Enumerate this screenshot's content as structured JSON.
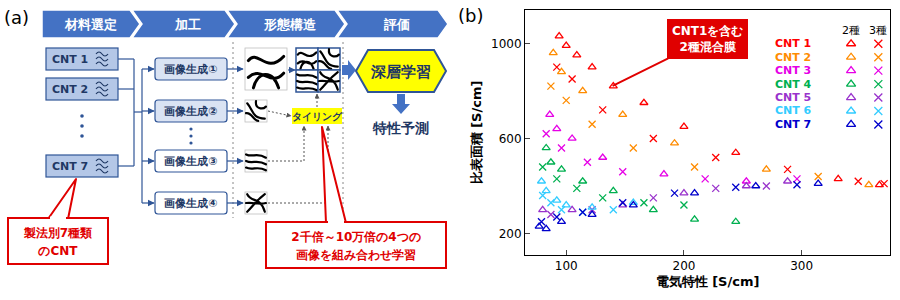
{
  "panel_a": {
    "label": "(a)",
    "stages": [
      "材料選定",
      "加工",
      "形態構造",
      "評価"
    ],
    "materials": [
      "CNT 1",
      "CNT 2",
      "CNT 7"
    ],
    "materials_note": [
      "製法別7種類",
      "のCNT"
    ],
    "processes": [
      "画像生成①",
      "画像生成②",
      "画像生成③",
      "画像生成④"
    ],
    "tiling": "タイリング",
    "deep_learning": "深層学習",
    "prediction": "特性予測",
    "tiling_note": [
      "2千倍～10万倍の4つの",
      "画像を組み合わせ学習"
    ]
  },
  "chart_data": {
    "type": "scatter",
    "label": "(b)",
    "x_label": "電気特性 [S/cm]",
    "y_label": "比表面積 [S/cm]",
    "xlim": [
      65,
      375
    ],
    "ylim": [
      110,
      1140
    ],
    "xticks": [
      100,
      200,
      300
    ],
    "yticks": [
      200,
      600,
      1000
    ],
    "grid": false,
    "legend": "top-right",
    "annotations": [
      {
        "text": "CNT1を含む\n2種混合膜"
      }
    ],
    "series": [
      {
        "name": "CNT 1",
        "color": "#ff0000",
        "mixtures": [
          {
            "name": "2種",
            "marker": "triangle-open",
            "x": [
              94,
              100,
              109,
              122,
              140,
              166,
              200,
              244,
              331,
              366
            ],
            "y": [
              1030,
              990,
              950,
              900,
              820,
              750,
              650,
              540,
              430,
              405
            ]
          },
          {
            "name": "3種",
            "marker": "x",
            "x": [
              92,
              105,
              131,
              174,
              227,
              288,
              348,
              370
            ],
            "y": [
              900,
              850,
              720,
              600,
              520,
              470,
              420,
              410
            ]
          }
        ]
      },
      {
        "name": "CNT 2",
        "color": "#ff8c00",
        "mixtures": [
          {
            "name": "2種",
            "marker": "triangle-open",
            "x": [
              89,
              96,
              114,
              148,
              192,
              270,
              357
            ],
            "y": [
              960,
              880,
              800,
              700,
              580,
              470,
              405
            ]
          },
          {
            "name": "3種",
            "marker": "x",
            "x": [
              87,
              100,
              122,
              157,
              209,
              314
            ],
            "y": [
              820,
              760,
              660,
              560,
              480,
              440
            ]
          }
        ]
      },
      {
        "name": "CNT 3",
        "color": "#e600e6",
        "mixtures": [
          {
            "name": "2種",
            "marker": "triangle-open",
            "x": [
              86,
              92,
              105,
              131,
              183,
              253
            ],
            "y": [
              700,
              640,
              600,
              520,
              450,
              420
            ]
          },
          {
            "name": "3種",
            "marker": "x",
            "x": [
              83,
              96,
              118,
              148,
              218,
              296
            ],
            "y": [
              620,
              560,
              500,
              460,
              430,
              430
            ]
          }
        ]
      },
      {
        "name": "CNT 4",
        "color": "#00b050",
        "mixtures": [
          {
            "name": "2種",
            "marker": "triangle-open",
            "x": [
              83,
              87,
              96,
              114,
              140,
              174,
              209,
              244
            ],
            "y": [
              560,
              500,
              470,
              420,
              380,
              300,
              260,
              250
            ]
          },
          {
            "name": "3種",
            "marker": "x",
            "x": [
              80,
              92,
              109,
              131,
              166,
              200
            ],
            "y": [
              480,
              430,
              390,
              350,
              330,
              320
            ]
          }
        ]
      },
      {
        "name": "CNT 5",
        "color": "#9933cc",
        "mixtures": [
          {
            "name": "2種",
            "marker": "triangle-open",
            "x": [
              80,
              105,
              148,
              200,
              253,
              288
            ],
            "y": [
              300,
              300,
              320,
              370,
              400,
              420
            ]
          },
          {
            "name": "3種",
            "marker": "x",
            "x": [
              87,
              122,
              174,
              227,
              270
            ],
            "y": [
              280,
              300,
              350,
              390,
              400
            ]
          }
        ]
      },
      {
        "name": "CNT 6",
        "color": "#33ccff",
        "mixtures": [
          {
            "name": "2種",
            "marker": "triangle-open",
            "x": [
              79,
              83,
              92,
              100,
              122,
              157
            ],
            "y": [
              420,
              380,
              340,
              320,
              310,
              330
            ]
          },
          {
            "name": "3種",
            "marker": "x",
            "x": [
              80,
              87,
              96,
              114,
              140
            ],
            "y": [
              360,
              330,
              300,
              290,
              300
            ]
          }
        ]
      },
      {
        "name": "CNT 7",
        "color": "#0000cc",
        "mixtures": [
          {
            "name": "2種",
            "marker": "triangle-open",
            "x": [
              77,
              83,
              96,
              122,
              157,
              209,
              261,
              314
            ],
            "y": [
              230,
              220,
              250,
              280,
              320,
              370,
              400,
              410
            ]
          },
          {
            "name": "3種",
            "marker": "x",
            "x": [
              79,
              92,
              114,
              148,
              192,
              244,
              296
            ],
            "y": [
              250,
              270,
              290,
              330,
              370,
              395,
              405
            ]
          }
        ]
      }
    ]
  }
}
